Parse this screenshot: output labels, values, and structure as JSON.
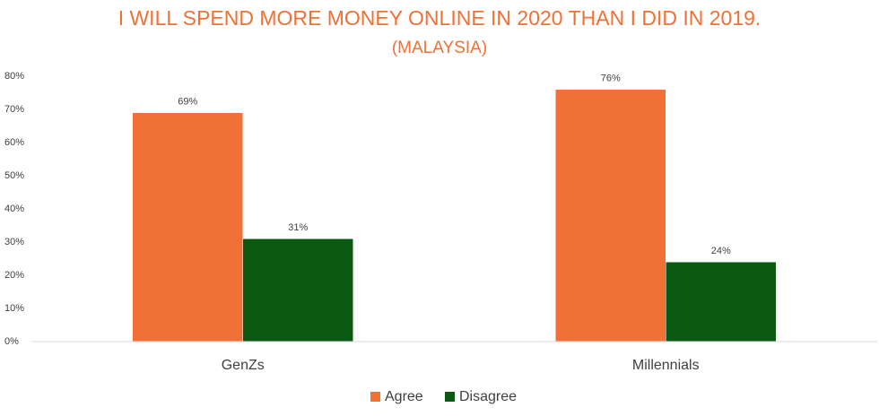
{
  "chart_data": {
    "type": "bar",
    "title": "I WILL SPEND MORE MONEY ONLINE IN 2020 THAN I DID IN 2019.",
    "subtitle": "(MALAYSIA)",
    "categories": [
      "GenZs",
      "Millennials"
    ],
    "series": [
      {
        "name": "Agree",
        "color": "#f07035",
        "values": [
          69,
          76
        ],
        "value_labels": [
          "69%",
          "76%"
        ]
      },
      {
        "name": "Disagree",
        "color": "#0b5a14",
        "values": [
          31,
          24
        ],
        "value_labels": [
          "31%",
          "24%"
        ]
      }
    ],
    "ylim": [
      0,
      80
    ],
    "yticks": [
      {
        "value": 0,
        "label": "0%"
      },
      {
        "value": 10,
        "label": "10%"
      },
      {
        "value": 20,
        "label": "20%"
      },
      {
        "value": 30,
        "label": "30%"
      },
      {
        "value": 40,
        "label": "40%"
      },
      {
        "value": 50,
        "label": "50%"
      },
      {
        "value": 60,
        "label": "60%"
      },
      {
        "value": 70,
        "label": "70%"
      },
      {
        "value": 80,
        "label": "80%"
      }
    ],
    "grid": false,
    "legend": "bottom"
  }
}
